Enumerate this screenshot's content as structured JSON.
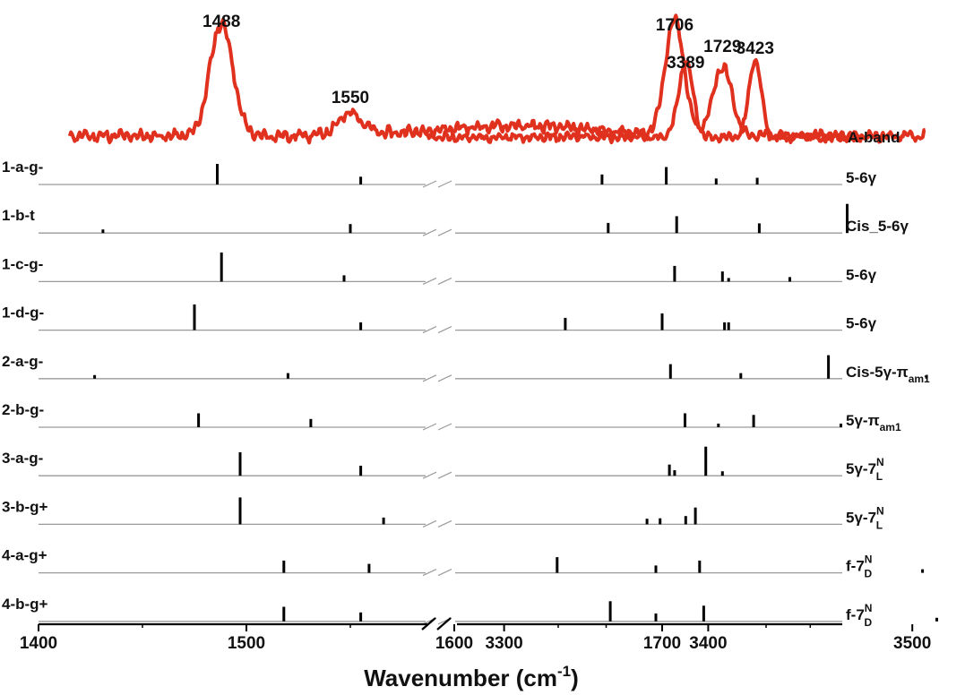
{
  "chart_data": {
    "type": "stick-spectrum",
    "xlabel": "Wavenumber (cm",
    "xlabel_sup": "-1",
    "xlabel_close": ")",
    "x_ranges": [
      [
        1400,
        1850
      ],
      [
        3250,
        3560
      ]
    ],
    "x_ticks": [
      1400,
      1500,
      1600,
      1700,
      3300,
      3400,
      3500
    ],
    "experimental": {
      "name": "A-band",
      "color": "#e0301e",
      "segments": [
        {
          "x_start": 1415,
          "x_end": 1827,
          "baseline": 0.13,
          "noise": 0.045,
          "peaks": [
            {
              "x": 1488,
              "height": 0.9,
              "width": 5.5
            },
            {
              "x": 1550,
              "height": 0.17,
              "width": 6
            },
            {
              "x": 1706,
              "height": 0.92,
              "width": 4.5
            },
            {
              "x": 1729,
              "height": 0.55,
              "width": 4.5
            }
          ]
        },
        {
          "x_start": 3262,
          "x_end": 3475,
          "baseline": 0.12,
          "noise": 0.035,
          "peaks": [
            {
              "x": 3389,
              "height": 0.6,
              "width": 3.5
            },
            {
              "x": 3423,
              "height": 0.62,
              "width": 3
            }
          ]
        }
      ],
      "peak_labels": [
        {
          "x": 1488,
          "text": "1488"
        },
        {
          "x": 1550,
          "text": "1550"
        },
        {
          "x": 1706,
          "text": "1706"
        },
        {
          "x": 1729,
          "text": "1729"
        },
        {
          "x": 3389,
          "text": "3389"
        },
        {
          "x": 3423,
          "text": "3423"
        }
      ]
    },
    "conformers": [
      {
        "name": "1-a-g-",
        "assignment": "5-6γ",
        "sticks": [
          [
            1486,
            0.92
          ],
          [
            1555,
            0.35
          ],
          [
            1702,
            0.78
          ],
          [
            1726,
            0.27
          ],
          [
            3348,
            0.45
          ],
          [
            3424,
            0.3
          ]
        ]
      },
      {
        "name": "1-b-t",
        "assignment": "Cis_5-6γ",
        "sticks": [
          [
            1431,
            0.15
          ],
          [
            1550,
            0.4
          ],
          [
            1707,
            0.75
          ],
          [
            1789,
            1.3
          ],
          [
            3351,
            0.45
          ],
          [
            3425,
            0.43
          ]
        ]
      },
      {
        "name": "1-c-g-",
        "assignment": "5-6γ",
        "sticks": [
          [
            1488,
            1.3
          ],
          [
            1547,
            0.28
          ],
          [
            1706,
            0.7
          ],
          [
            1729,
            0.45
          ],
          [
            3410,
            0.15
          ],
          [
            3440,
            0.2
          ]
        ]
      },
      {
        "name": "1-d-g-",
        "assignment": "5-6γ",
        "sticks": [
          [
            1475,
            1.15
          ],
          [
            1555,
            0.35
          ],
          [
            1700,
            0.75
          ],
          [
            1730,
            0.35
          ],
          [
            3330,
            0.55
          ],
          [
            3410,
            0.35
          ]
        ]
      },
      {
        "name": "2-a-g-",
        "assignment": "Cis-5γ-π",
        "assignment_sub": "am1",
        "sticks": [
          [
            1427,
            0.12
          ],
          [
            1520,
            0.25
          ],
          [
            1704,
            0.65
          ],
          [
            1780,
            1.05
          ],
          [
            3416,
            0.25
          ],
          [
            3507,
            0.08
          ]
        ]
      },
      {
        "name": "2-b-g-",
        "assignment": "5γ-π",
        "assignment_sub": "am1",
        "sticks": [
          [
            1477,
            0.62
          ],
          [
            1531,
            0.37
          ],
          [
            1711,
            0.62
          ],
          [
            1744,
            0.55
          ],
          [
            3405,
            0.1
          ],
          [
            3465,
            0.1
          ]
        ]
      },
      {
        "name": "3-a-g-",
        "assignment": "5γ-7",
        "assignment_sub": "L",
        "assignment_sup": "N",
        "sticks": [
          [
            1497,
            1.05
          ],
          [
            1555,
            0.45
          ],
          [
            1706,
            0.25
          ],
          [
            1721,
            1.3
          ],
          [
            3381,
            0.5
          ],
          [
            3407,
            0.2
          ]
        ]
      },
      {
        "name": "3-b-g+",
        "assignment": "5γ-7",
        "assignment_sub": "L",
        "assignment_sup": "N",
        "sticks": [
          [
            1497,
            1.2
          ],
          [
            1566,
            0.3
          ],
          [
            1699,
            0.27
          ],
          [
            1716,
            0.75
          ],
          [
            3370,
            0.25
          ],
          [
            3389,
            0.37
          ]
        ]
      },
      {
        "name": "4-a-g+",
        "assignment": "f-7",
        "assignment_sub": "D",
        "assignment_sup": "N",
        "sticks": [
          [
            1518,
            0.55
          ],
          [
            1559,
            0.4
          ],
          [
            1697,
            0.33
          ],
          [
            1718,
            0.55
          ],
          [
            3326,
            0.7
          ],
          [
            3505,
            0.07
          ]
        ]
      },
      {
        "name": "4-b-g+",
        "assignment": "f-7",
        "assignment_sub": "D",
        "assignment_sup": "N",
        "sticks": [
          [
            1518,
            0.65
          ],
          [
            1555,
            0.4
          ],
          [
            1697,
            0.35
          ],
          [
            1720,
            0.7
          ],
          [
            3352,
            0.9
          ],
          [
            3512,
            0.05
          ]
        ]
      }
    ]
  }
}
